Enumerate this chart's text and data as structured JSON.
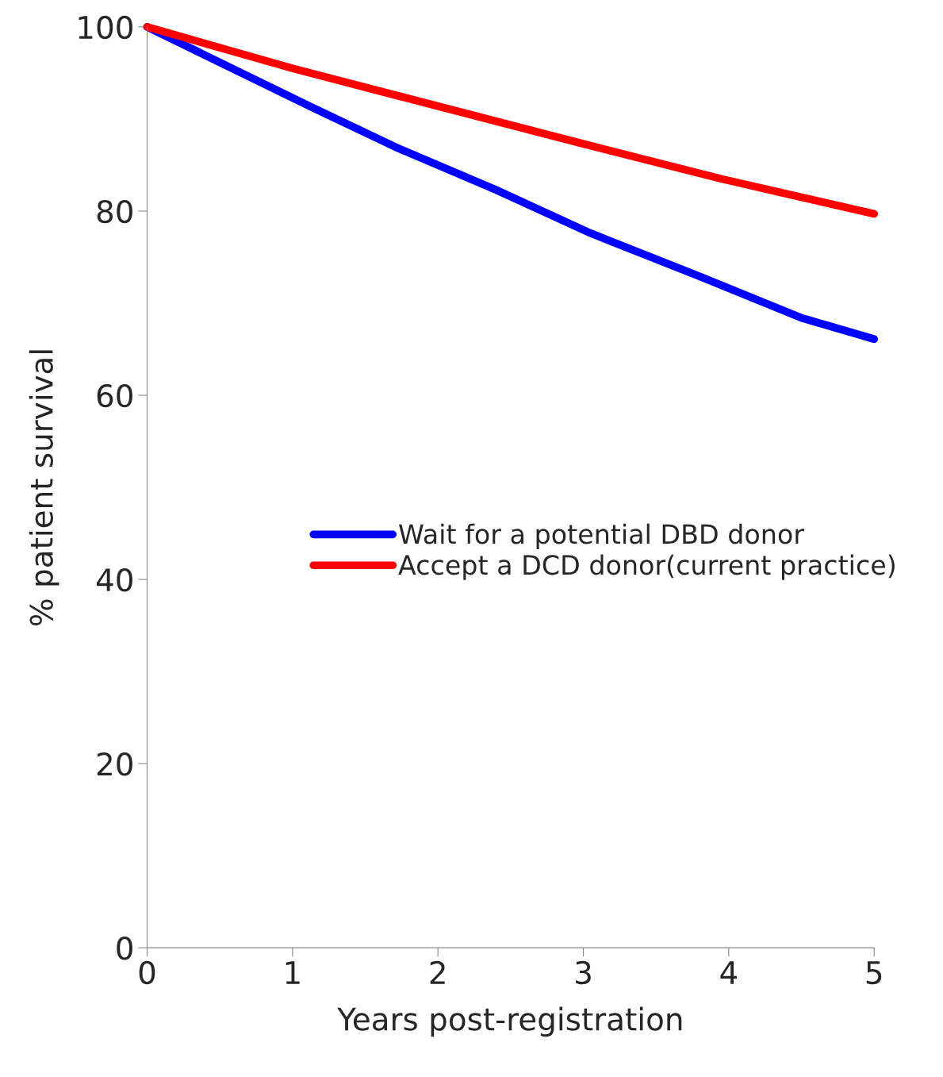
{
  "chart_data": {
    "type": "line",
    "xlabel": "Years post-registration",
    "ylabel": "% patient survival",
    "xlim": [
      0,
      5
    ],
    "ylim": [
      0,
      100
    ],
    "xticks": [
      0,
      1,
      2,
      3,
      4,
      5
    ],
    "yticks": [
      0,
      20,
      40,
      60,
      80,
      100
    ],
    "legend": "center",
    "grid": false,
    "marker": "none",
    "line_style": "solid",
    "series": [
      {
        "name": "Wait for a potential DBD donor",
        "color": "#0000ff",
        "x": [
          0,
          1.13,
          1.73,
          2.4,
          3.05,
          3.8,
          4.5,
          5
        ],
        "values": [
          100,
          91.3,
          86.8,
          82.3,
          77.6,
          72.9,
          68.4,
          66.1
        ]
      },
      {
        "name": "Accept a DCD donor(current practice)",
        "color": "#ff0000",
        "x": [
          0,
          1,
          1.9,
          3,
          3.95,
          5
        ],
        "values": [
          100,
          95.5,
          91.8,
          87.3,
          83.5,
          79.7
        ]
      }
    ]
  }
}
